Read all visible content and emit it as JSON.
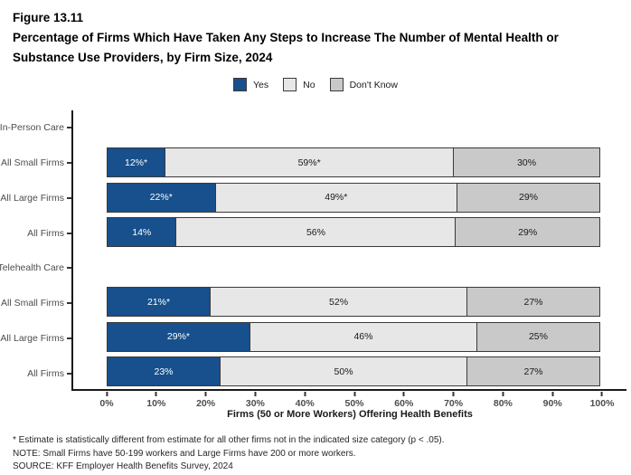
{
  "chart_data": {
    "type": "bar",
    "stacked": true,
    "orientation": "horizontal",
    "figure_label": "Figure 13.11",
    "title": "Percentage of Firms Which Have Taken Any Steps to Increase The Number of Mental Health or Substance Use Providers, by Firm Size, 2024",
    "title_lines": [
      "Percentage of Firms Which Have Taken Any Steps to Increase The Number of Mental Health or",
      "Substance Use Providers, by Firm Size, 2024"
    ],
    "series_names": [
      "Yes",
      "No",
      "Don't Know"
    ],
    "colors": {
      "Yes": "#17508c",
      "No": "#e7e7e7",
      "Don't Know": "#c9c9c9"
    },
    "text_colors": {
      "Yes": "#ffffff",
      "No": "#1a1a1a",
      "Don't Know": "#1a1a1a"
    },
    "legend_position": "top",
    "xlabel": "Firms (50 or More Workers) Offering Health Benefits",
    "xlim": [
      0,
      100
    ],
    "x_ticks": [
      "0%",
      "10%",
      "20%",
      "30%",
      "40%",
      "50%",
      "60%",
      "70%",
      "80%",
      "90%",
      "100%"
    ],
    "rows": [
      {
        "label": "In-Person Care",
        "header": true
      },
      {
        "label": "All Small Firms",
        "segments": [
          {
            "series": "Yes",
            "value": 12,
            "text": "12%*"
          },
          {
            "series": "No",
            "value": 59,
            "text": "59%*"
          },
          {
            "series": "Don't Know",
            "value": 30,
            "text": "30%"
          }
        ]
      },
      {
        "label": "All Large Firms",
        "segments": [
          {
            "series": "Yes",
            "value": 22,
            "text": "22%*"
          },
          {
            "series": "No",
            "value": 49,
            "text": "49%*"
          },
          {
            "series": "Don't Know",
            "value": 29,
            "text": "29%"
          }
        ]
      },
      {
        "label": "All Firms",
        "segments": [
          {
            "series": "Yes",
            "value": 14,
            "text": "14%"
          },
          {
            "series": "No",
            "value": 56,
            "text": "56%"
          },
          {
            "series": "Don't Know",
            "value": 29,
            "text": "29%"
          }
        ]
      },
      {
        "label": "Telehealth Care",
        "header": true
      },
      {
        "label": "All Small Firms",
        "segments": [
          {
            "series": "Yes",
            "value": 21,
            "text": "21%*"
          },
          {
            "series": "No",
            "value": 52,
            "text": "52%"
          },
          {
            "series": "Don't Know",
            "value": 27,
            "text": "27%"
          }
        ]
      },
      {
        "label": "All Large Firms",
        "segments": [
          {
            "series": "Yes",
            "value": 29,
            "text": "29%*"
          },
          {
            "series": "No",
            "value": 46,
            "text": "46%"
          },
          {
            "series": "Don't Know",
            "value": 25,
            "text": "25%"
          }
        ]
      },
      {
        "label": "All Firms",
        "segments": [
          {
            "series": "Yes",
            "value": 23,
            "text": "23%"
          },
          {
            "series": "No",
            "value": 50,
            "text": "50%"
          },
          {
            "series": "Don't Know",
            "value": 27,
            "text": "27%"
          }
        ]
      }
    ]
  },
  "footnotes": [
    "* Estimate is statistically different from estimate for all other firms not in the indicated size category (p < .05).",
    "NOTE: Small Firms have 50-199 workers and Large Firms have 200 or more workers.",
    "SOURCE: KFF Employer Health Benefits Survey, 2024"
  ]
}
